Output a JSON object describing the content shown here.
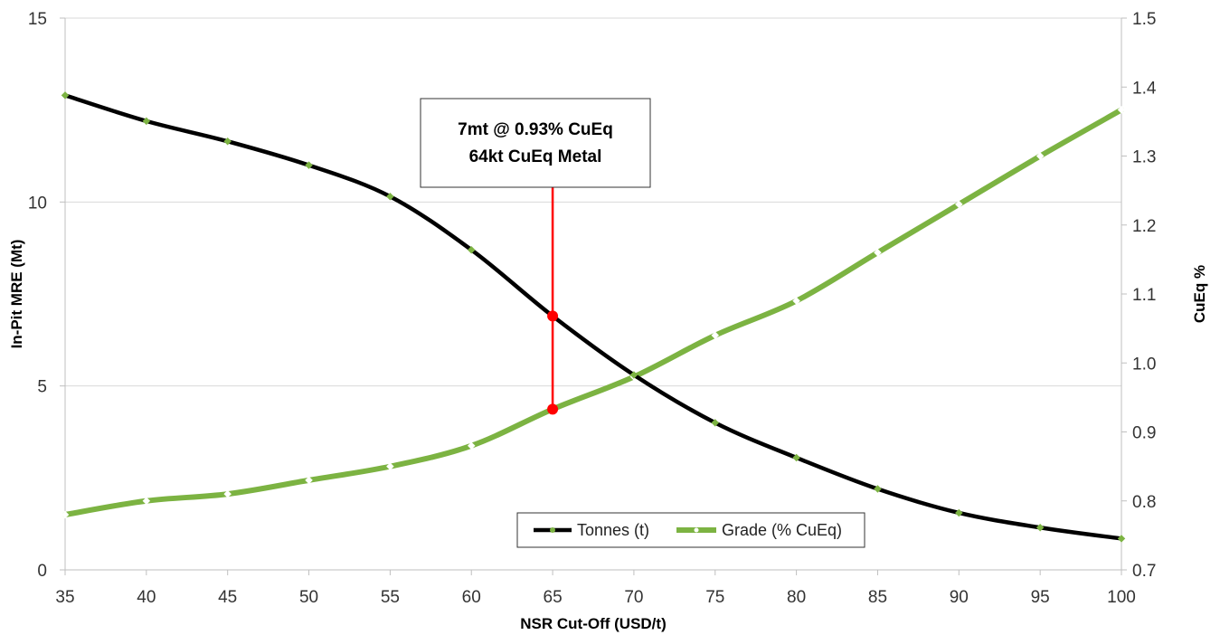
{
  "chart_data": {
    "type": "line",
    "xlabel": "NSR Cut-Off (USD/t)",
    "ylabel": "In-Pit MRE (Mt)",
    "y2label": "CuEq %",
    "x": [
      35,
      40,
      45,
      50,
      55,
      60,
      65,
      70,
      75,
      80,
      85,
      90,
      95,
      100
    ],
    "xlim": [
      35,
      100
    ],
    "ylim": [
      0,
      15
    ],
    "y2lim": [
      0.7,
      1.5
    ],
    "x_ticks": [
      "35",
      "40",
      "45",
      "50",
      "55",
      "60",
      "65",
      "70",
      "75",
      "80",
      "85",
      "90",
      "95",
      "100"
    ],
    "y_ticks": [
      "0",
      "5",
      "10",
      "15"
    ],
    "y2_ticks": [
      "0.7",
      "0.8",
      "0.9",
      "1.0",
      "1.1",
      "1.2",
      "1.3",
      "1.4",
      "1.5"
    ],
    "grid": "horizontal",
    "legend_position": "bottom-center",
    "series": [
      {
        "name": "Tonnes (t)",
        "axis": "left",
        "color": "#000000",
        "marker_color": "#7cb342",
        "values": [
          12.9,
          12.2,
          11.65,
          11.0,
          10.15,
          8.7,
          6.9,
          5.3,
          4.0,
          3.05,
          2.2,
          1.55,
          1.15,
          0.85
        ]
      },
      {
        "name": "Grade (% CuEq)",
        "axis": "right",
        "color": "#7cb342",
        "marker_color": "#ffffff",
        "values": [
          0.78,
          0.8,
          0.81,
          0.83,
          0.85,
          0.88,
          0.933,
          0.98,
          1.04,
          1.09,
          1.16,
          1.23,
          1.3,
          1.367
        ]
      }
    ],
    "annotation": {
      "lines": [
        "7mt @ 0.93% CuEq",
        "64kt CuEq Metal"
      ],
      "x": 65,
      "y_tonnes": 6.9,
      "y_grade": 0.933,
      "line_color": "#ff0000"
    }
  }
}
